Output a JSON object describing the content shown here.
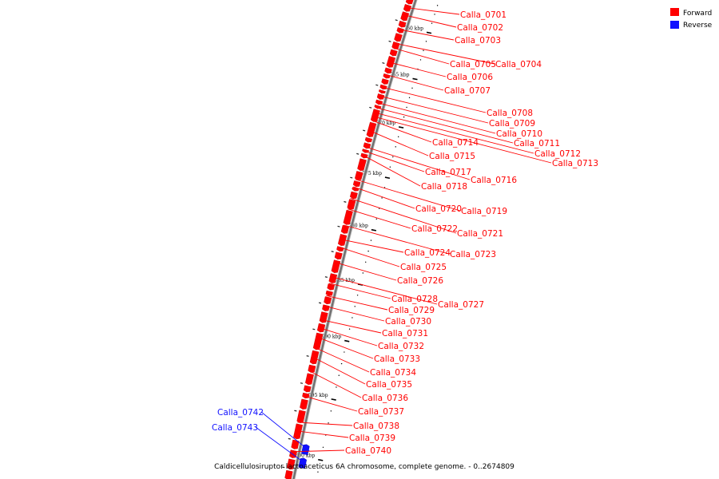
{
  "caption": "Caldicellulosiruptor lactoaceticus 6A chromosome, complete genome. - 0..2674809",
  "legend": [
    {
      "label": "Forward",
      "color": "#ff0000"
    },
    {
      "label": "Reverse",
      "color": "#1010ff"
    }
  ],
  "strand_colors": {
    "forward": "#ff0000",
    "reverse": "#1010ff",
    "backbone": "#808080"
  },
  "scale_ticks": [
    {
      "kbp": 760,
      "label": "760 kbp"
    },
    {
      "kbp": 765,
      "label": "765 kbp"
    },
    {
      "kbp": 770,
      "label": "770 kbp"
    },
    {
      "kbp": 775,
      "label": "775 kbp"
    },
    {
      "kbp": 780,
      "label": "780 kbp"
    },
    {
      "kbp": 785,
      "label": "785 kbp"
    },
    {
      "kbp": 790,
      "label": "790 kbp"
    },
    {
      "kbp": 795,
      "label": "795 kbp"
    },
    {
      "kbp": 800,
      "label": "800 kbp"
    }
  ],
  "genes": [
    {
      "name": "Calla_0701",
      "strand": "forward",
      "kbp": 758.3
    },
    {
      "name": "Calla_0702",
      "strand": "forward",
      "kbp": 759.1
    },
    {
      "name": "Calla_0703",
      "strand": "forward",
      "kbp": 760.7
    },
    {
      "name": "Calla_0704",
      "strand": "forward",
      "kbp": 762.2
    },
    {
      "name": "Calla_0705",
      "strand": "forward",
      "kbp": 762.7
    },
    {
      "name": "Calla_0706",
      "strand": "forward",
      "kbp": 764.2
    },
    {
      "name": "Calla_0707",
      "strand": "forward",
      "kbp": 765.5
    },
    {
      "name": "Calla_0708",
      "strand": "forward",
      "kbp": 766.8
    },
    {
      "name": "Calla_0709",
      "strand": "forward",
      "kbp": 767.7
    },
    {
      "name": "Calla_0710",
      "strand": "forward",
      "kbp": 768.4
    },
    {
      "name": "Calla_0711",
      "strand": "forward",
      "kbp": 768.9
    },
    {
      "name": "Calla_0712",
      "strand": "forward",
      "kbp": 769.4
    },
    {
      "name": "Calla_0713",
      "strand": "forward",
      "kbp": 769.8
    },
    {
      "name": "Calla_0714",
      "strand": "forward",
      "kbp": 770.2
    },
    {
      "name": "Calla_0715",
      "strand": "forward",
      "kbp": 771.2
    },
    {
      "name": "Calla_0716",
      "strand": "forward",
      "kbp": 772.8
    },
    {
      "name": "Calla_0717",
      "strand": "forward",
      "kbp": 773.2
    },
    {
      "name": "Calla_0718",
      "strand": "forward",
      "kbp": 773.6
    },
    {
      "name": "Calla_0719",
      "strand": "forward",
      "kbp": 776.0
    },
    {
      "name": "Calla_0720",
      "strand": "forward",
      "kbp": 776.7
    },
    {
      "name": "Calla_0721",
      "strand": "forward",
      "kbp": 777.8
    },
    {
      "name": "Calla_0722",
      "strand": "forward",
      "kbp": 778.8
    },
    {
      "name": "Calla_0723",
      "strand": "forward",
      "kbp": 780.3
    },
    {
      "name": "Calla_0724",
      "strand": "forward",
      "kbp": 781.6
    },
    {
      "name": "Calla_0725",
      "strand": "forward",
      "kbp": 782.3
    },
    {
      "name": "Calla_0726",
      "strand": "forward",
      "kbp": 783.7
    },
    {
      "name": "Calla_0727",
      "strand": "forward",
      "kbp": 785.0
    },
    {
      "name": "Calla_0728",
      "strand": "forward",
      "kbp": 785.6
    },
    {
      "name": "Calla_0729",
      "strand": "forward",
      "kbp": 786.7
    },
    {
      "name": "Calla_0730",
      "strand": "forward",
      "kbp": 787.6
    },
    {
      "name": "Calla_0731",
      "strand": "forward",
      "kbp": 788.8
    },
    {
      "name": "Calla_0732",
      "strand": "forward",
      "kbp": 789.5
    },
    {
      "name": "Calla_0733",
      "strand": "forward",
      "kbp": 790.3
    },
    {
      "name": "Calla_0734",
      "strand": "forward",
      "kbp": 791.2
    },
    {
      "name": "Calla_0735",
      "strand": "forward",
      "kbp": 792.0
    },
    {
      "name": "Calla_0736",
      "strand": "forward",
      "kbp": 793.2
    },
    {
      "name": "Calla_0737",
      "strand": "forward",
      "kbp": 795.3
    },
    {
      "name": "Calla_0738",
      "strand": "forward",
      "kbp": 797.5
    },
    {
      "name": "Calla_0739",
      "strand": "forward",
      "kbp": 798.2
    },
    {
      "name": "Calla_0740",
      "strand": "forward",
      "kbp": 799.9
    },
    {
      "name": "Calla_0742",
      "strand": "reverse",
      "kbp": 799.5
    },
    {
      "name": "Calla_0743",
      "strand": "reverse",
      "kbp": 800.6
    }
  ]
}
